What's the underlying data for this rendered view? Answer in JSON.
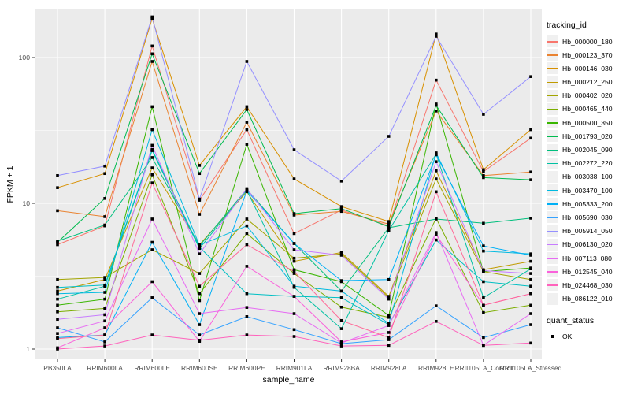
{
  "chart_data": {
    "type": "line",
    "title": "",
    "xlabel": "sample_name",
    "ylabel": "FPKM + 1",
    "y_scale": "log10",
    "ylim": [
      1,
      200
    ],
    "grid": "on",
    "legend_position": "right",
    "legend_title": "tracking_id",
    "legend2_title": "quant_status",
    "legend2_items": [
      {
        "label": "OK",
        "marker": "black-square"
      }
    ],
    "point_marker": {
      "shape": "square",
      "color": "#000000"
    },
    "panel_bg": "#EBEBEB",
    "grid_color": "#FFFFFF",
    "tick_label_color": "#4D4D4D",
    "y_ticks": [
      "1",
      "10",
      "100"
    ],
    "y_tick_values": [
      1,
      10,
      100
    ],
    "y_minor_values": [
      3.1623,
      31.623
    ],
    "x_categories": [
      "PB350LA",
      "RRIM600LA",
      "RRIM600LE",
      "RRIM600SE",
      "RRIM600PE",
      "RRIM901LA",
      "RRIM928BA",
      "RRIM928LA",
      "RRIM928LE",
      "RRII105LA_Control",
      "RRII105LA_Stressed"
    ],
    "series": [
      {
        "name": "Hb_000000_180",
        "color": "#F8766D",
        "values": [
          5.2,
          7.0,
          120,
          10.5,
          32,
          6.2,
          9.0,
          7.0,
          70,
          16.5,
          28
        ]
      },
      {
        "name": "Hb_000123_370",
        "color": "#EA8331",
        "values": [
          8.9,
          8.1,
          94,
          8.4,
          36,
          8.3,
          8.8,
          7.2,
          43,
          15.5,
          16.4
        ]
      },
      {
        "name": "Hb_000146_030",
        "color": "#D89000",
        "values": [
          12.8,
          16,
          185,
          18.2,
          46,
          14.7,
          9.5,
          7.5,
          145,
          17,
          32
        ]
      },
      {
        "name": "Hb_000212_250",
        "color": "#C09B00",
        "values": [
          2.5,
          3.0,
          17.5,
          5.2,
          12.0,
          4.0,
          4.6,
          2.3,
          16.7,
          3.5,
          4.0
        ]
      },
      {
        "name": "Hb_000402_020",
        "color": "#A3A500",
        "values": [
          3.0,
          3.1,
          4.8,
          3.3,
          7.8,
          4.2,
          4.5,
          2.25,
          14.7,
          3.4,
          3.0
        ]
      },
      {
        "name": "Hb_000465_440",
        "color": "#7CAE00",
        "values": [
          1.8,
          1.9,
          15.7,
          2.4,
          6.2,
          3.3,
          1.94,
          1.65,
          7.9,
          1.78,
          2.0
        ]
      },
      {
        "name": "Hb_000500_350",
        "color": "#39B600",
        "values": [
          2.0,
          2.2,
          46,
          2.15,
          25.4,
          3.5,
          2.9,
          1.7,
          48,
          3.4,
          3.6
        ]
      },
      {
        "name": "Hb_001793_020",
        "color": "#00BB4E",
        "values": [
          5.4,
          10.8,
          106,
          16,
          44,
          8.5,
          9.2,
          6.9,
          47,
          15,
          14.5
        ]
      },
      {
        "name": "Hb_002045_090",
        "color": "#00BF7D",
        "values": [
          5.5,
          7.1,
          20.6,
          5.1,
          12.5,
          5.3,
          2.5,
          6.8,
          7.8,
          7.3,
          7.9
        ]
      },
      {
        "name": "Hb_002272_220",
        "color": "#00C1A3",
        "values": [
          2.2,
          2.7,
          23.0,
          4.9,
          12.3,
          2.65,
          1.38,
          6.5,
          21.8,
          2.25,
          3.55
        ]
      },
      {
        "name": "Hb_003038_100",
        "color": "#00BFC4",
        "values": [
          2.65,
          2.75,
          23.4,
          5.0,
          2.4,
          2.3,
          2.25,
          1.47,
          5.6,
          2.9,
          2.7
        ]
      },
      {
        "name": "Hb_003470_100",
        "color": "#00BAE0",
        "values": [
          2.4,
          2.45,
          32,
          5.15,
          7.0,
          2.7,
          2.5,
          1.5,
          22.2,
          4.7,
          4.5
        ]
      },
      {
        "name": "Hb_005333_200",
        "color": "#00B0F6",
        "values": [
          1.2,
          1.25,
          5.4,
          1.47,
          12.2,
          5.3,
          2.95,
          3.0,
          21.5,
          5.1,
          4.4
        ]
      },
      {
        "name": "Hb_005690_030",
        "color": "#35A2FF",
        "values": [
          1.4,
          1.12,
          2.25,
          1.25,
          1.67,
          1.36,
          1.09,
          1.16,
          1.98,
          1.2,
          1.47
        ]
      },
      {
        "name": "Hb_005914_050",
        "color": "#9590FF",
        "values": [
          15.5,
          18,
          190,
          10.7,
          94,
          23.3,
          14.2,
          28.8,
          140,
          40.8,
          74
        ]
      },
      {
        "name": "Hb_006130_020",
        "color": "#C77CFF",
        "values": [
          1.6,
          1.72,
          25,
          4.5,
          12.6,
          4.8,
          4.4,
          2.2,
          19.3,
          3.45,
          3.3
        ]
      },
      {
        "name": "Hb_007113_080",
        "color": "#E76BF3",
        "values": [
          1.28,
          1.56,
          7.8,
          1.75,
          1.93,
          1.75,
          1.1,
          1.45,
          6.3,
          1.06,
          1.75
        ]
      },
      {
        "name": "Hb_012545_040",
        "color": "#FA62DB",
        "values": [
          1.02,
          1.4,
          2.9,
          1.13,
          3.7,
          2.3,
          1.12,
          1.3,
          6.1,
          2.0,
          2.4
        ]
      },
      {
        "name": "Hb_024468_030",
        "color": "#FF62BC",
        "values": [
          1.0,
          1.05,
          1.25,
          1.15,
          1.25,
          1.22,
          1.05,
          1.06,
          1.55,
          1.06,
          1.1
        ]
      },
      {
        "name": "Hb_086122_010",
        "color": "#FF6A98",
        "values": [
          1.18,
          1.25,
          13.8,
          2.7,
          5.2,
          3.4,
          1.57,
          1.2,
          12,
          2.0,
          2.4
        ]
      }
    ]
  }
}
